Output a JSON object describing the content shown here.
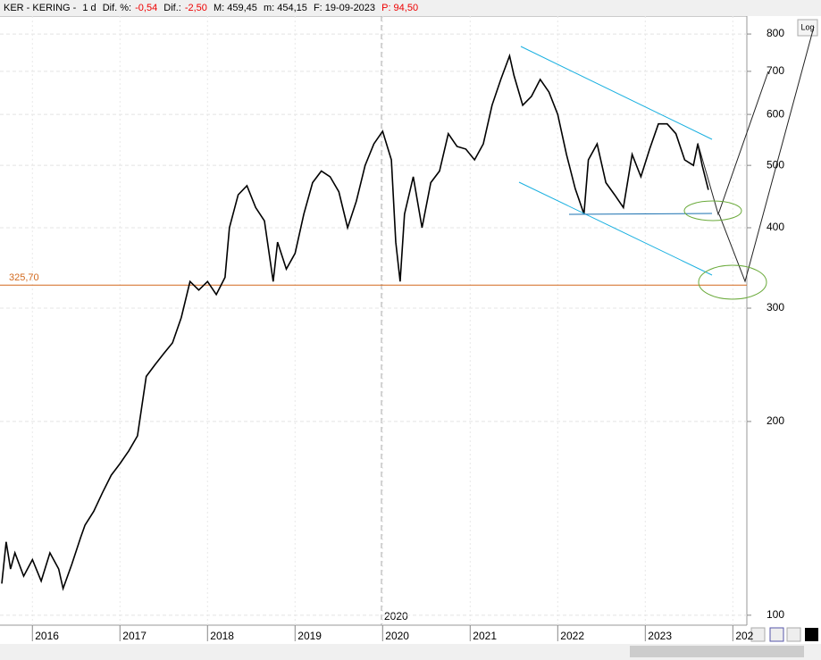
{
  "header": {
    "symbol": "KER - KERING -",
    "period": "1 d",
    "dif_pct_label": "Dif. %:",
    "dif_pct": "-0,54",
    "dif_label": "Dif.:",
    "dif": "-2,50",
    "max": "M: 459,45",
    "min": "m: 454,15",
    "date": "F: 19-09-2023",
    "p": "P: 94,50"
  },
  "log_button": "Log",
  "cursor_label": "2020",
  "chart_data": {
    "type": "line",
    "log_scale": true,
    "grid": true,
    "color": "#000000",
    "x": [
      2015.65,
      2015.7,
      2015.75,
      2015.8,
      2015.9,
      2016.0,
      2016.1,
      2016.2,
      2016.3,
      2016.35,
      2016.45,
      2016.55,
      2016.6,
      2016.7,
      2016.8,
      2016.9,
      2017.0,
      2017.1,
      2017.2,
      2017.3,
      2017.4,
      2017.5,
      2017.6,
      2017.7,
      2017.8,
      2017.9,
      2018.0,
      2018.1,
      2018.2,
      2018.25,
      2018.35,
      2018.45,
      2018.55,
      2018.65,
      2018.75,
      2018.8,
      2018.9,
      2019.0,
      2019.1,
      2019.2,
      2019.3,
      2019.4,
      2019.5,
      2019.6,
      2019.7,
      2019.8,
      2019.9,
      2020.0,
      2020.1,
      2020.15,
      2020.2,
      2020.25,
      2020.35,
      2020.45,
      2020.55,
      2020.65,
      2020.75,
      2020.85,
      2020.95,
      2021.05,
      2021.15,
      2021.25,
      2021.35,
      2021.45,
      2021.5,
      2021.6,
      2021.7,
      2021.8,
      2021.9,
      2022.0,
      2022.1,
      2022.2,
      2022.3,
      2022.35,
      2022.45,
      2022.55,
      2022.65,
      2022.75,
      2022.85,
      2022.95,
      2023.05,
      2023.15,
      2023.25,
      2023.35,
      2023.45,
      2023.55,
      2023.6,
      2023.65,
      2023.72
    ],
    "values": [
      112,
      130,
      118,
      125,
      115,
      122,
      113,
      125,
      118,
      110,
      120,
      132,
      138,
      145,
      155,
      165,
      172,
      180,
      190,
      235,
      245,
      255,
      265,
      290,
      330,
      320,
      330,
      315,
      335,
      400,
      450,
      465,
      430,
      410,
      330,
      380,
      345,
      365,
      420,
      470,
      490,
      480,
      455,
      400,
      440,
      500,
      540,
      565,
      510,
      380,
      330,
      420,
      480,
      400,
      470,
      490,
      560,
      535,
      530,
      510,
      540,
      620,
      680,
      740,
      690,
      620,
      640,
      680,
      650,
      600,
      520,
      460,
      420,
      510,
      540,
      470,
      450,
      430,
      520,
      480,
      530,
      580,
      580,
      560,
      510,
      500,
      540,
      500,
      458
    ],
    "xlim": [
      2015.63,
      2024.16
    ],
    "xticks": [
      2016,
      2017,
      2018,
      2019,
      2020,
      2021,
      2022,
      2023,
      {
        "value": 2024,
        "label": "202"
      }
    ],
    "ylim": [
      96.5,
      853
    ],
    "yticks": [
      100,
      200,
      300,
      400,
      500,
      600,
      700,
      800
    ],
    "reference_line": {
      "value": 325.7,
      "label": "325,70",
      "color": "#d2691e"
    }
  }
}
